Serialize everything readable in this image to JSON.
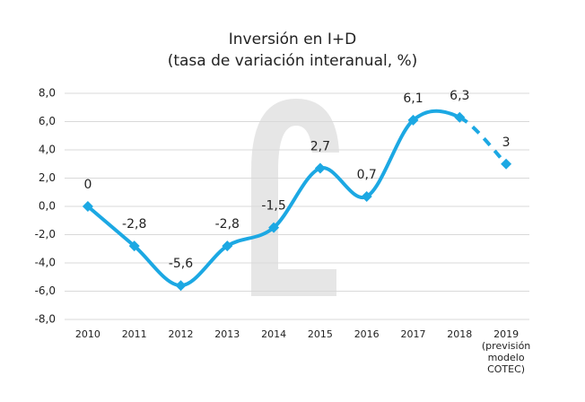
{
  "chart_data": {
    "type": "line",
    "title": "Inversión en I+D",
    "subtitle": "(tasa de variación interanual, %)",
    "categories": [
      "2010",
      "2011",
      "2012",
      "2013",
      "2014",
      "2015",
      "2016",
      "2017",
      "2018",
      "2019\n(previsión\nmodelo\nCOTEC)"
    ],
    "values": [
      0,
      -2.8,
      -5.6,
      -2.8,
      -1.5,
      2.7,
      0.7,
      6.1,
      6.3,
      3
    ],
    "value_labels": [
      "0",
      "-2,8",
      "-5,6",
      "-2,8",
      "-1,5",
      "2,7",
      "0,7",
      "6,1",
      "6,3",
      "3"
    ],
    "color": "#1ca8e3",
    "dashed_last_segment": true,
    "ylim": [
      -8,
      8
    ],
    "yticks": [
      {
        "value": -8,
        "label": "-8,0"
      },
      {
        "value": -6,
        "label": "-6,0"
      },
      {
        "value": -4,
        "label": "-4,0"
      },
      {
        "value": -2,
        "label": "-2,0"
      },
      {
        "value": 0,
        "label": "0,0"
      },
      {
        "value": 2,
        "label": "2,0"
      },
      {
        "value": 4,
        "label": "4,0"
      },
      {
        "value": 6,
        "label": "6,0"
      },
      {
        "value": 8,
        "label": "8,0"
      }
    ],
    "grid": true
  }
}
